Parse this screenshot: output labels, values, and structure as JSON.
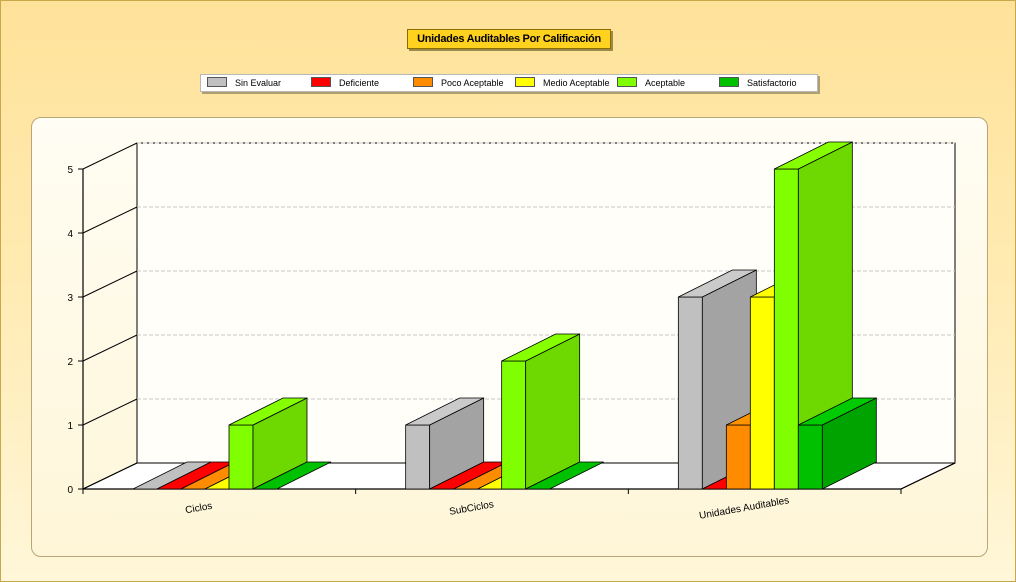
{
  "chart_data": {
    "type": "bar",
    "title": "Unidades Auditables Por Calificación",
    "categories": [
      "Ciclos",
      "SubCiclos",
      "Unidades Auditables"
    ],
    "series": [
      {
        "name": "Sin Evaluar",
        "color": "#c0c0c0",
        "values": [
          0,
          1,
          3
        ]
      },
      {
        "name": "Deficiente",
        "color": "#ff0000",
        "values": [
          0,
          0,
          0
        ]
      },
      {
        "name": "Poco Aceptable",
        "color": "#ff8c00",
        "values": [
          0,
          0,
          1
        ]
      },
      {
        "name": "Medio Aceptable",
        "color": "#ffff00",
        "values": [
          0,
          0,
          3
        ]
      },
      {
        "name": "Aceptable",
        "color": "#80ff00",
        "values": [
          1,
          2,
          5
        ]
      },
      {
        "name": "Satisfactorio",
        "color": "#00c000",
        "values": [
          0,
          0,
          1
        ]
      }
    ],
    "ylim": [
      0,
      5
    ],
    "yticks": [
      0,
      1,
      2,
      3,
      4,
      5
    ],
    "grid": true,
    "legend": "top",
    "three_d": true
  }
}
